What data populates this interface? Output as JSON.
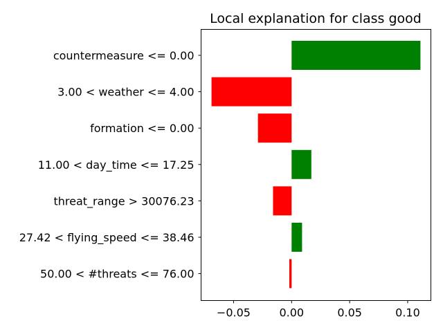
{
  "chart_data": {
    "type": "bar",
    "orientation": "horizontal",
    "title": "Local explanation for class good",
    "xlabel": "",
    "ylabel": "",
    "categories": [
      "countermeasure <= 0.00",
      "3.00 < weather <= 4.00",
      "formation <= 0.00",
      "11.00 < day_time <= 17.25",
      "threat_range > 30076.23",
      "27.42 < flying_speed <= 38.46",
      "50.00 < #threats <= 76.00"
    ],
    "values": [
      0.111,
      -0.069,
      -0.029,
      0.017,
      -0.016,
      0.009,
      -0.002
    ],
    "xlim": [
      -0.078,
      0.12
    ],
    "x_ticks": [
      -0.05,
      0.0,
      0.05,
      0.1
    ],
    "x_tick_labels": [
      "−0.05",
      "0.00",
      "0.05",
      "0.10"
    ],
    "colors": {
      "positive": "#008000",
      "negative": "#ff0000"
    },
    "grid": false,
    "legend": "none"
  }
}
